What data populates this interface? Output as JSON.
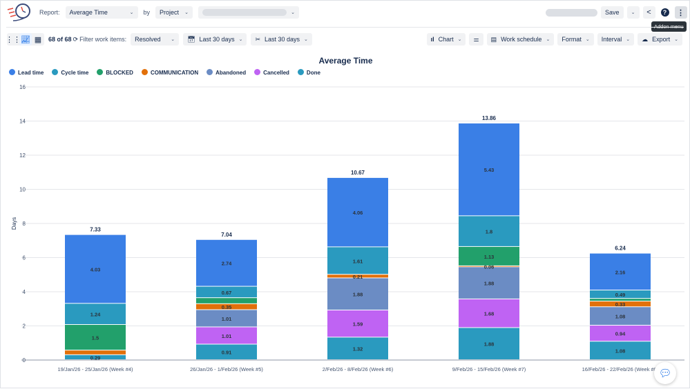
{
  "header": {
    "report_label": "Report:",
    "report_value": "Average Time",
    "by_label": "by",
    "by_value": "Project",
    "save_label": "Save",
    "tooltip": "Addon menu"
  },
  "toolbar": {
    "count": "68 of 68",
    "filter_label": "Filter work items:",
    "filter_value": "Resolved",
    "date_range": "Last 30 days",
    "date_range2": "Last 30 days",
    "chart": "Chart",
    "work_schedule": "Work schedule",
    "format": "Format",
    "interval": "Interval",
    "export": "Export"
  },
  "chart_data": {
    "type": "bar",
    "stacked": true,
    "title": "Average Time",
    "ylabel": "Days",
    "ylim": [
      0,
      16
    ],
    "yticks": [
      0,
      2,
      4,
      6,
      8,
      10,
      12,
      14,
      16
    ],
    "categories": [
      "19/Jan/26 - 25/Jan/26 (Week #4)",
      "26/Jan/26 - 1/Feb/26 (Week #5)",
      "2/Feb/26 - 8/Feb/26 (Week #6)",
      "9/Feb/26 - 15/Feb/26 (Week #7)",
      "16/Feb/26 - 22/Feb/26 (Week #8)"
    ],
    "totals": [
      "7.33",
      "7.04",
      "10.67",
      "13.86",
      "6.24"
    ],
    "series": [
      {
        "name": "Done",
        "color": "#2a9abf",
        "values": [
          0.29,
          0.91,
          1.32,
          1.88,
          1.08
        ],
        "labels": [
          "0.29",
          "0.91",
          "1.32",
          "1.88",
          "1.08"
        ]
      },
      {
        "name": "Cancelled",
        "color": "#bf63f3",
        "values": [
          0,
          1.01,
          1.59,
          1.68,
          0.94
        ],
        "labels": [
          null,
          "1.01",
          "1.59",
          "1.68",
          "0.94"
        ]
      },
      {
        "name": "Abandoned",
        "color": "#6b8cc4",
        "values": [
          0,
          1.01,
          1.88,
          1.88,
          1.08
        ],
        "labels": [
          null,
          "1.01",
          "1.88",
          "1.88",
          "1.08"
        ]
      },
      {
        "name": "COMMUNICATION",
        "color": "#e2700a",
        "values": [
          0.27,
          0.35,
          0.21,
          0.06,
          0.33
        ],
        "labels": [
          null,
          "0.35",
          "0.21",
          "0.06",
          "0.33"
        ]
      },
      {
        "name": "BLOCKED",
        "color": "#22a06b",
        "values": [
          1.5,
          0.35,
          0,
          1.13,
          0.16
        ],
        "labels": [
          "1.5",
          null,
          null,
          "1.13",
          null
        ]
      },
      {
        "name": "Cycle time",
        "color": "#2a9abf",
        "values": [
          1.24,
          0.67,
          1.61,
          1.8,
          0.49
        ],
        "labels": [
          "1.24",
          "0.67",
          "1.61",
          "1.8",
          "0.49"
        ]
      },
      {
        "name": "Lead time",
        "color": "#3a7fe6",
        "values": [
          4.03,
          2.74,
          4.06,
          5.43,
          2.16
        ],
        "labels": [
          "4.03",
          "2.74",
          "4.06",
          "5.43",
          "2.16"
        ]
      }
    ],
    "legend": [
      "Lead time",
      "Cycle time",
      "BLOCKED",
      "COMMUNICATION",
      "Abandoned",
      "Cancelled",
      "Done"
    ],
    "legend_colors": [
      "#3a7fe6",
      "#2a9abf",
      "#22a06b",
      "#e2700a",
      "#6b8cc4",
      "#bf63f3",
      "#2a9abf"
    ],
    "legend_position": "top-left"
  }
}
